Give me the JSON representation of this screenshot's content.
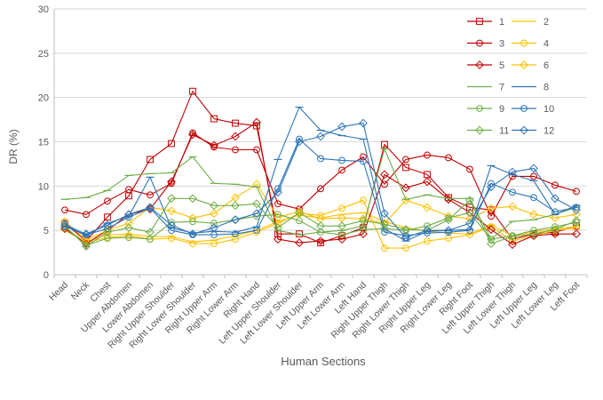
{
  "chart_data": {
    "type": "line",
    "xlabel": "Human Sections",
    "ylabel": "DR (%)",
    "ylim": [
      0,
      30
    ],
    "yticks": [
      0,
      5,
      10,
      15,
      20,
      25,
      30
    ],
    "grid": true,
    "legend_position": "top-right",
    "categories": [
      "Head",
      "Neck",
      "Chest",
      "Upper Abdomen",
      "Lower Abdomen",
      "Right Upper Shoulder",
      "Right Lower Shoulder",
      "Right Upper Arm",
      "Right Lower Arm",
      "Right Hand",
      "Left Upper Shoulder",
      "Left Lower Shoulder",
      "Left Upper Arm",
      "Left Lower Arm",
      "Left Hand",
      "Right Upper Thigh",
      "Right Lower Thigh",
      "Right Upper Leg",
      "Right Lower Leg",
      "Right Foot",
      "Left Upper Thigh",
      "Left Lower Thigh",
      "Left Upper Leg",
      "Left Lower Leg",
      "Left Foot"
    ],
    "series": [
      {
        "name": "1",
        "color": "#c00000",
        "marker": "square",
        "values": [
          5.8,
          3.8,
          6.5,
          8.9,
          13.0,
          14.8,
          20.7,
          17.6,
          17.1,
          16.8,
          4.6,
          4.6,
          3.6,
          4.4,
          5.3,
          14.7,
          12.1,
          11.3,
          8.7,
          7.6,
          7.3,
          4.0,
          4.6,
          4.8,
          5.5
        ]
      },
      {
        "name": "2",
        "color": "#ffc000",
        "marker": "line",
        "values": [
          5.0,
          3.7,
          4.5,
          4.6,
          4.3,
          4.3,
          3.7,
          3.9,
          4.4,
          5.0,
          6.0,
          6.7,
          6.4,
          6.8,
          7.0,
          6.0,
          5.3,
          4.9,
          4.7,
          4.6,
          5.6,
          4.4,
          4.8,
          5.2,
          5.4
        ]
      },
      {
        "name": "3",
        "color": "#c00000",
        "marker": "circle",
        "values": [
          7.3,
          6.8,
          8.3,
          9.6,
          9.0,
          10.3,
          16.0,
          14.4,
          14.1,
          14.1,
          8.0,
          7.4,
          9.7,
          11.8,
          13.3,
          10.2,
          13.0,
          13.5,
          13.2,
          11.9,
          6.6,
          11.1,
          11.1,
          10.1,
          9.4
        ]
      },
      {
        "name": "4",
        "color": "#ffc000",
        "marker": "circle",
        "values": [
          5.3,
          3.6,
          4.2,
          4.4,
          4.0,
          4.1,
          3.5,
          3.5,
          4.0,
          4.8,
          5.8,
          6.9,
          6.7,
          7.5,
          8.4,
          3.0,
          3.0,
          3.8,
          4.1,
          4.5,
          5.4,
          3.8,
          4.4,
          5.0,
          5.3
        ]
      },
      {
        "name": "5",
        "color": "#c00000",
        "marker": "diamond",
        "values": [
          5.2,
          3.5,
          5.0,
          6.8,
          7.4,
          10.5,
          15.8,
          14.6,
          15.6,
          17.2,
          4.0,
          3.6,
          3.8,
          4.0,
          4.6,
          11.3,
          9.8,
          10.5,
          8.5,
          7.0,
          5.1,
          3.4,
          4.4,
          4.6,
          4.6
        ]
      },
      {
        "name": "6",
        "color": "#ffc000",
        "marker": "diamond",
        "values": [
          6.0,
          3.9,
          5.0,
          5.8,
          7.6,
          7.2,
          6.4,
          6.9,
          8.7,
          10.2,
          6.5,
          7.1,
          6.3,
          6.4,
          6.3,
          5.8,
          8.4,
          7.6,
          6.6,
          6.3,
          7.5,
          7.7,
          6.8,
          6.4,
          6.8
        ]
      },
      {
        "name": "7",
        "color": "#70ad47",
        "marker": "line",
        "values": [
          8.5,
          8.7,
          9.5,
          11.2,
          11.4,
          11.5,
          13.3,
          10.3,
          10.2,
          9.9,
          5.0,
          4.5,
          4.8,
          5.0,
          5.5,
          14.2,
          8.5,
          9.0,
          8.6,
          8.6,
          4.0,
          6.0,
          6.2,
          6.8,
          7.6
        ]
      },
      {
        "name": "8",
        "color": "#2e75b6",
        "marker": "line",
        "values": [
          5.5,
          4.4,
          5.8,
          6.6,
          11.0,
          5.3,
          4.7,
          4.9,
          4.8,
          5.4,
          13.0,
          18.9,
          16.3,
          15.7,
          15.3,
          5.2,
          3.8,
          4.9,
          5.0,
          5.1,
          12.3,
          11.3,
          10.6,
          6.8,
          7.8
        ]
      },
      {
        "name": "9",
        "color": "#70ad47",
        "marker": "circle",
        "values": [
          5.4,
          3.3,
          4.1,
          4.2,
          4.0,
          5.9,
          6.0,
          5.8,
          6.2,
          6.6,
          6.8,
          6.1,
          4.8,
          4.5,
          5.1,
          5.2,
          5.0,
          5.5,
          6.4,
          7.0,
          4.0,
          4.4,
          5.0,
          5.4,
          5.9
        ]
      },
      {
        "name": "10",
        "color": "#2e75b6",
        "marker": "circle",
        "values": [
          5.7,
          4.5,
          5.2,
          6.5,
          7.5,
          5.0,
          4.5,
          4.5,
          4.6,
          5.0,
          9.7,
          15.3,
          13.1,
          12.9,
          12.8,
          4.8,
          4.4,
          4.7,
          4.8,
          5.0,
          10.3,
          9.3,
          8.7,
          7.1,
          7.6
        ]
      },
      {
        "name": "11",
        "color": "#70ad47",
        "marker": "diamond",
        "values": [
          5.5,
          3.2,
          4.8,
          5.3,
          4.8,
          8.6,
          8.6,
          7.8,
          7.8,
          8.0,
          5.3,
          7.0,
          5.5,
          5.5,
          6.1,
          5.7,
          5.1,
          5.0,
          6.2,
          8.4,
          3.5,
          4.3,
          4.6,
          5.1,
          6.1
        ]
      },
      {
        "name": "12",
        "color": "#2e75b6",
        "marker": "diamond",
        "values": [
          5.5,
          4.6,
          5.6,
          6.8,
          7.6,
          5.6,
          4.6,
          5.3,
          6.2,
          6.9,
          9.3,
          15.0,
          15.6,
          16.7,
          17.1,
          6.9,
          4.2,
          5.0,
          5.0,
          5.8,
          9.9,
          11.6,
          12.0,
          8.6,
          7.3
        ]
      }
    ]
  }
}
